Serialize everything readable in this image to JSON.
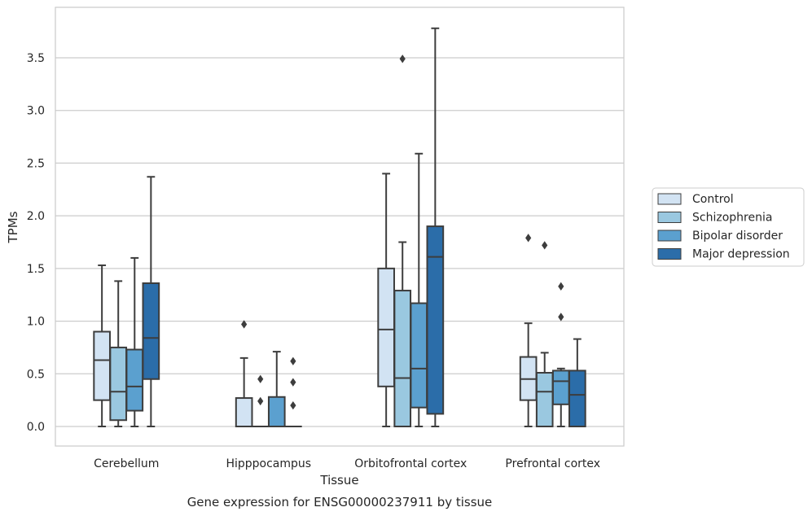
{
  "caption": "Gene expression for ENSG00000237911 by tissue",
  "chart_data": {
    "type": "box",
    "xlabel": "Tissue",
    "ylabel": "TPMs",
    "ylim": [
      -0.18,
      3.95
    ],
    "yticks": [
      0.0,
      0.5,
      1.0,
      1.5,
      2.0,
      2.5,
      3.0,
      3.5
    ],
    "ytick_labels": [
      "0.0",
      "0.5",
      "1.0",
      "1.5",
      "2.0",
      "2.5",
      "3.0",
      "3.5"
    ],
    "grid": "horizontal",
    "legend_position": "right",
    "categories": [
      "Cerebellum",
      "Hipppocampus",
      "Orbitofrontal cortex",
      "Prefrontal cortex"
    ],
    "series": [
      {
        "name": "Control",
        "color": "#d2e3f3",
        "boxes": [
          {
            "whislo": 0.0,
            "q1": 0.25,
            "med": 0.63,
            "q3": 0.9,
            "whishi": 1.53,
            "fliers": []
          },
          {
            "whislo": 0.0,
            "q1": 0.0,
            "med": 0.0,
            "q3": 0.27,
            "whishi": 0.65,
            "fliers": [
              0.97
            ]
          },
          {
            "whislo": 0.0,
            "q1": 0.38,
            "med": 0.92,
            "q3": 1.5,
            "whishi": 2.4,
            "fliers": []
          },
          {
            "whislo": 0.0,
            "q1": 0.25,
            "med": 0.45,
            "q3": 0.66,
            "whishi": 0.98,
            "fliers": [
              1.79
            ]
          }
        ]
      },
      {
        "name": "Schizophrenia",
        "color": "#9ac8e0",
        "boxes": [
          {
            "whislo": 0.0,
            "q1": 0.06,
            "med": 0.33,
            "q3": 0.75,
            "whishi": 1.38,
            "fliers": []
          },
          {
            "whislo": 0.0,
            "q1": 0.0,
            "med": 0.0,
            "q3": 0.0,
            "whishi": 0.0,
            "fliers": [
              0.24,
              0.45
            ]
          },
          {
            "whislo": 0.0,
            "q1": 0.0,
            "med": 0.46,
            "q3": 1.29,
            "whishi": 1.75,
            "fliers": [
              3.49
            ]
          },
          {
            "whislo": 0.0,
            "q1": 0.0,
            "med": 0.33,
            "q3": 0.51,
            "whishi": 0.7,
            "fliers": [
              1.72
            ]
          }
        ]
      },
      {
        "name": "Bipolar disorder",
        "color": "#5ba0cf",
        "boxes": [
          {
            "whislo": 0.0,
            "q1": 0.15,
            "med": 0.38,
            "q3": 0.73,
            "whishi": 1.6,
            "fliers": []
          },
          {
            "whislo": 0.0,
            "q1": 0.0,
            "med": 0.0,
            "q3": 0.28,
            "whishi": 0.71,
            "fliers": []
          },
          {
            "whislo": 0.0,
            "q1": 0.18,
            "med": 0.55,
            "q3": 1.17,
            "whishi": 2.59,
            "fliers": []
          },
          {
            "whislo": 0.0,
            "q1": 0.21,
            "med": 0.43,
            "q3": 0.53,
            "whishi": 0.55,
            "fliers": [
              1.04,
              1.33
            ]
          }
        ]
      },
      {
        "name": "Major depression",
        "color": "#2b6da9",
        "boxes": [
          {
            "whislo": 0.0,
            "q1": 0.45,
            "med": 0.84,
            "q3": 1.36,
            "whishi": 2.37,
            "fliers": []
          },
          {
            "whislo": 0.0,
            "q1": 0.0,
            "med": 0.0,
            "q3": 0.0,
            "whishi": 0.0,
            "fliers": [
              0.2,
              0.42,
              0.62
            ]
          },
          {
            "whislo": 0.0,
            "q1": 0.12,
            "med": 1.61,
            "q3": 1.9,
            "whishi": 3.78,
            "fliers": []
          },
          {
            "whislo": 0.0,
            "q1": 0.0,
            "med": 0.3,
            "q3": 0.53,
            "whishi": 0.83,
            "fliers": []
          }
        ]
      }
    ]
  }
}
